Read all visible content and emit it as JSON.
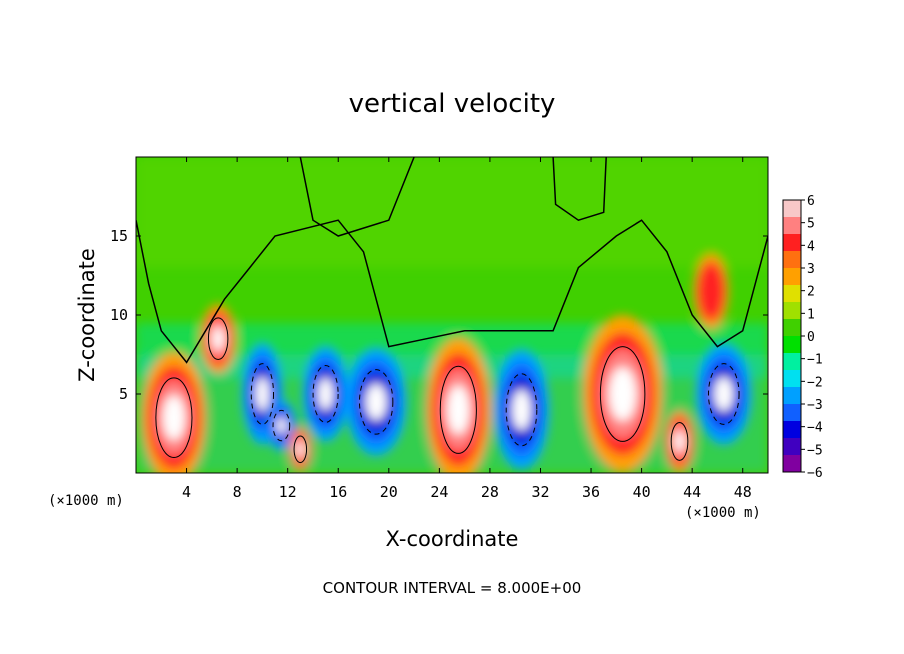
{
  "chart_data": {
    "type": "heatmap",
    "title": "vertical velocity",
    "xlabel": "X-coordinate",
    "ylabel": "Z-coordinate",
    "x_unit": "(×1000 m)",
    "z_unit": "(×1000 m)",
    "xlim": [
      0,
      50
    ],
    "ylim": [
      0,
      20
    ],
    "x_ticks": [
      "4",
      "8",
      "12",
      "16",
      "20",
      "24",
      "28",
      "32",
      "36",
      "40",
      "44",
      "48"
    ],
    "y_ticks": [
      "5",
      "10",
      "15"
    ],
    "colorbar": {
      "ticks": [
        "6",
        "5",
        "4",
        "3",
        "2",
        "1",
        "0",
        "−1",
        "−2",
        "−3",
        "−4",
        "−5",
        "−6"
      ],
      "colors": [
        "#f8c8c8",
        "#ff8080",
        "#ff2020",
        "#ff7010",
        "#ffa000",
        "#e0e000",
        "#a0e000",
        "#40d000",
        "#00e000",
        "#00f0a0",
        "#00e0f0",
        "#00a0ff",
        "#1060ff",
        "#0000e0",
        "#4000c0",
        "#8000a0"
      ]
    },
    "features": [
      {
        "x": 3.0,
        "z": 3.5,
        "sign": "positive"
      },
      {
        "x": 6.5,
        "z": 8.5,
        "sign": "positive"
      },
      {
        "x": 10.0,
        "z": 5.0,
        "sign": "negative"
      },
      {
        "x": 11.5,
        "z": 3.0,
        "sign": "negative"
      },
      {
        "x": 13.0,
        "z": 1.5,
        "sign": "positive"
      },
      {
        "x": 15.0,
        "z": 5.0,
        "sign": "negative"
      },
      {
        "x": 19.0,
        "z": 4.5,
        "sign": "negative"
      },
      {
        "x": 25.5,
        "z": 4.0,
        "sign": "positive"
      },
      {
        "x": 30.5,
        "z": 4.0,
        "sign": "negative"
      },
      {
        "x": 38.5,
        "z": 5.0,
        "sign": "positive"
      },
      {
        "x": 43.0,
        "z": 2.0,
        "sign": "positive"
      },
      {
        "x": 46.5,
        "z": 5.0,
        "sign": "negative"
      },
      {
        "x": 45.5,
        "z": 11.5,
        "sign": "positive"
      }
    ]
  },
  "footnote": "CONTOUR INTERVAL = 8.000E+00"
}
